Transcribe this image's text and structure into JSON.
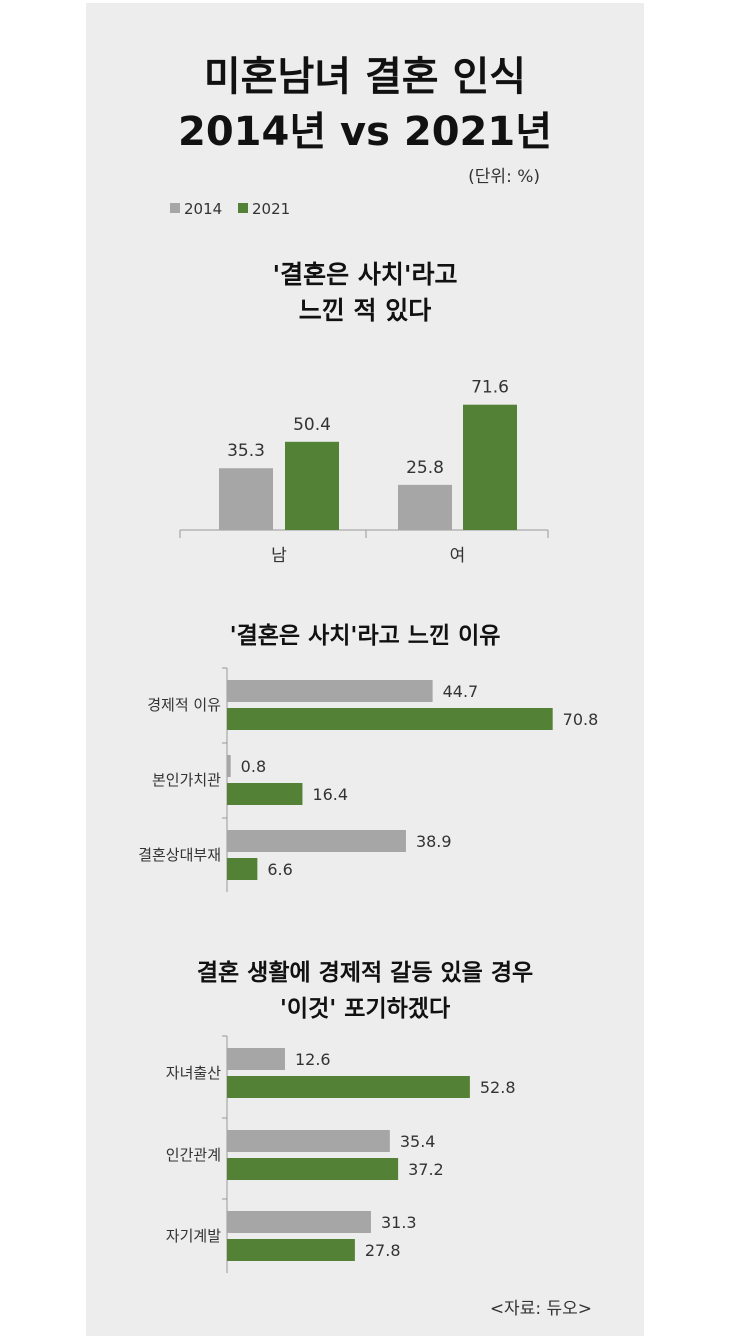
{
  "header": {
    "title_line1": "미혼남녀 결혼 인식",
    "title_line2": "2014년 vs 2021년",
    "unit": "(단위: %)"
  },
  "legend": [
    "2014",
    "2021"
  ],
  "colors": {
    "2014": "#a6a6a6",
    "2021": "#538135",
    "panel": "#ededed"
  },
  "source": "<자료: 듀오>",
  "chart_data": [
    {
      "type": "bar",
      "title": "'결혼은 사치'라고 느낀 적 있다",
      "title_lines": [
        "'결혼은 사치'라고",
        "느낀 적 있다"
      ],
      "categories": [
        "남",
        "여"
      ],
      "series": [
        {
          "name": "2014",
          "values": [
            35.3,
            25.8
          ]
        },
        {
          "name": "2021",
          "values": [
            50.4,
            71.6
          ]
        }
      ]
    },
    {
      "type": "bar",
      "orientation": "horizontal",
      "title": "'결혼은 사치'라고 느낀 이유",
      "title_lines": [
        "'결혼은 사치'라고 느낀 이유"
      ],
      "categories": [
        "경제적 이유",
        "본인가치관",
        "결혼상대부재"
      ],
      "series": [
        {
          "name": "2014",
          "values": [
            44.7,
            0.8,
            38.9
          ]
        },
        {
          "name": "2021",
          "values": [
            70.8,
            16.4,
            6.6
          ]
        }
      ]
    },
    {
      "type": "bar",
      "orientation": "horizontal",
      "title": "결혼 생활에 경제적 갈등 있을 경우 '이것' 포기하겠다",
      "title_lines": [
        "결혼 생활에 경제적 갈등 있을 경우",
        "'이것' 포기하겠다"
      ],
      "categories": [
        "자녀출산",
        "인간관계",
        "자기계발"
      ],
      "series": [
        {
          "name": "2014",
          "values": [
            12.6,
            35.4,
            31.3
          ]
        },
        {
          "name": "2021",
          "values": [
            52.8,
            37.2,
            27.8
          ]
        }
      ]
    }
  ]
}
